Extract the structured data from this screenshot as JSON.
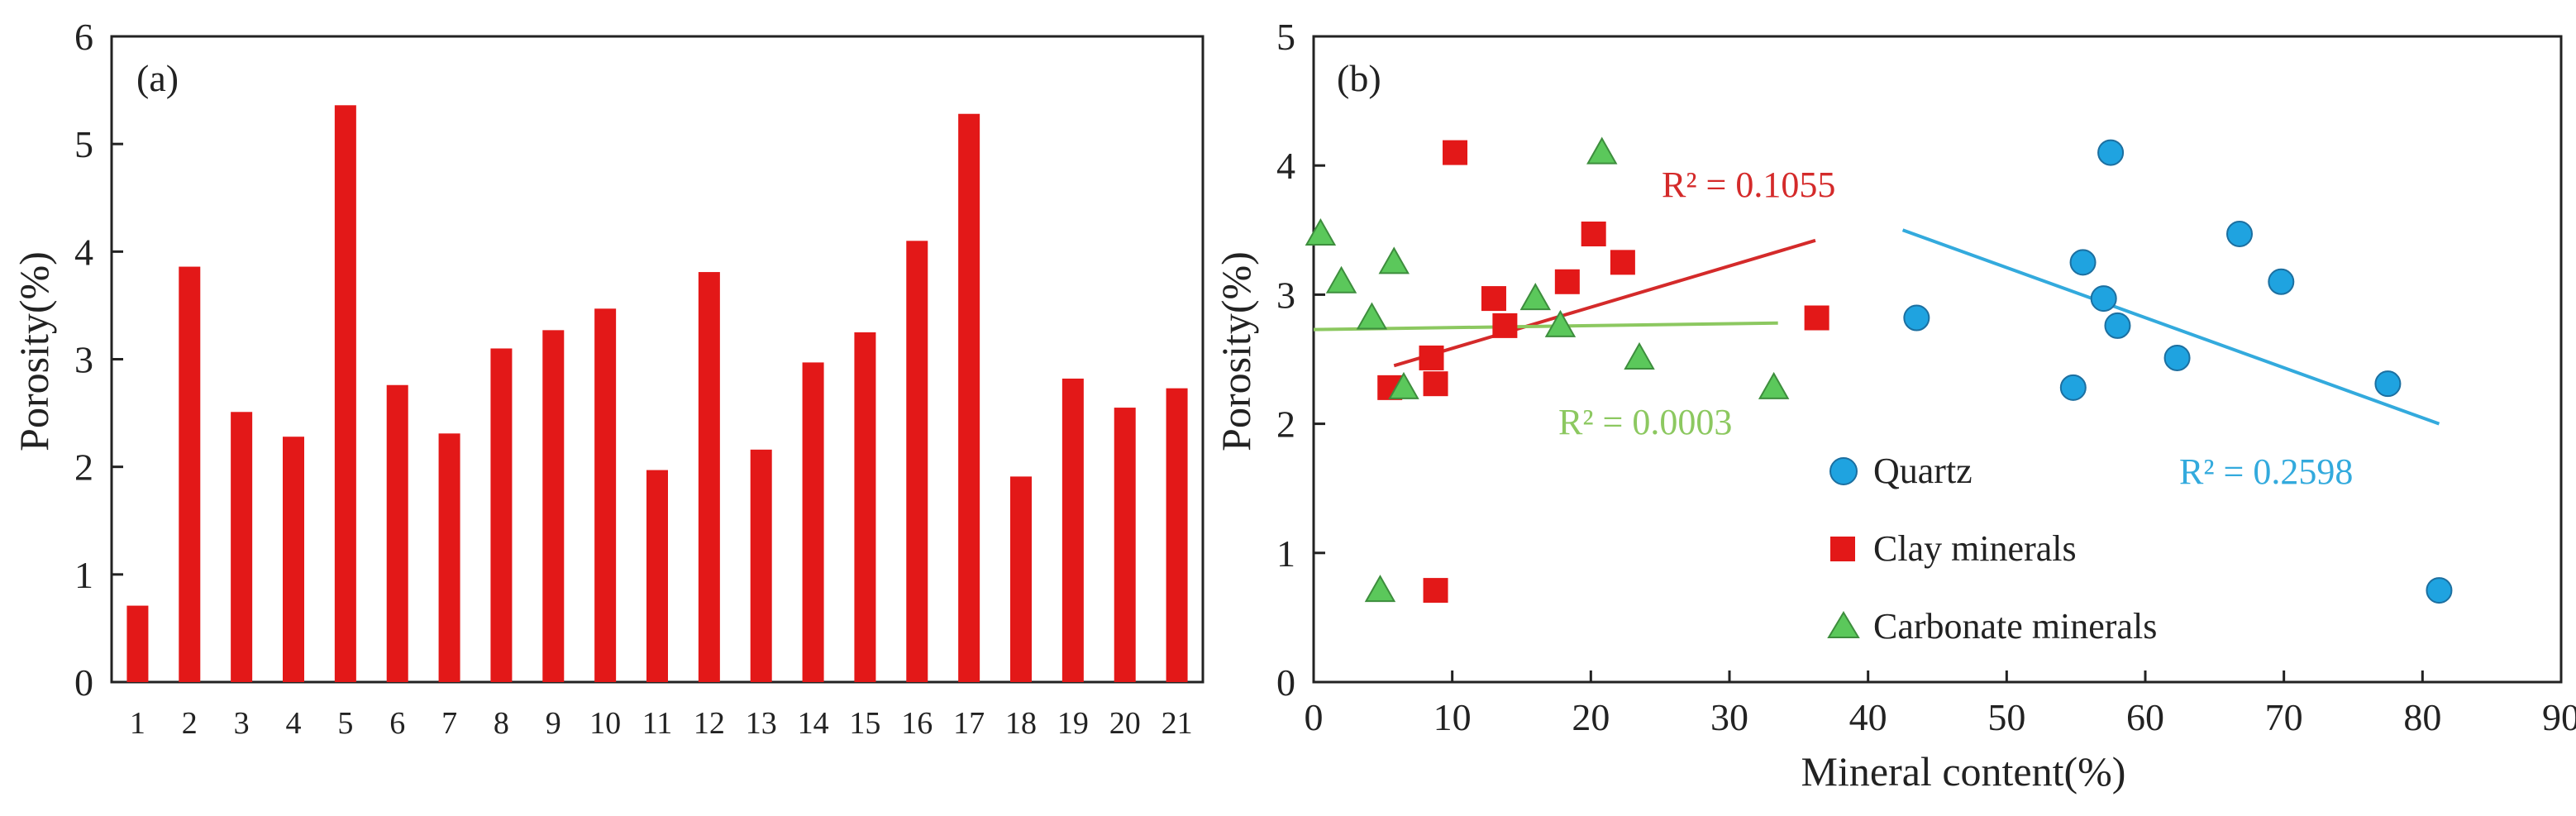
{
  "chart_data": [
    {
      "type": "bar",
      "panel_label": "(a)",
      "ylabel": "Porosity(%)",
      "xlabel": "",
      "ylim": [
        0,
        6
      ],
      "yticks": [
        0,
        1,
        2,
        3,
        4,
        5,
        6
      ],
      "bar_color": "#e31818",
      "categories": [
        "1",
        "2",
        "3",
        "4",
        "5",
        "6",
        "7",
        "8",
        "9",
        "10",
        "11",
        "12",
        "13",
        "14",
        "15",
        "16",
        "17",
        "18",
        "19",
        "20",
        "21"
      ],
      "values": [
        0.71,
        3.86,
        2.51,
        2.28,
        5.36,
        2.76,
        2.31,
        3.1,
        3.27,
        3.47,
        1.97,
        3.81,
        2.16,
        2.97,
        3.25,
        4.1,
        5.28,
        1.91,
        2.82,
        2.55,
        2.73
      ]
    },
    {
      "type": "scatter",
      "panel_label": "(b)",
      "xlabel": "Mineral content(%)",
      "ylabel": "Porosity(%)",
      "xlim": [
        0,
        90
      ],
      "ylim": [
        0,
        5
      ],
      "xticks": [
        0,
        10,
        20,
        30,
        40,
        50,
        60,
        70,
        80,
        90
      ],
      "yticks": [
        0,
        1,
        2,
        3,
        4,
        5
      ],
      "legend_position": "lower-center",
      "series": [
        {
          "name": "Quartz",
          "marker": "circle",
          "color": "#1fa3e0",
          "points": [
            [
              43.5,
              2.82
            ],
            [
              54.8,
              2.28
            ],
            [
              55.5,
              3.25
            ],
            [
              57,
              2.97
            ],
            [
              57.5,
              4.1
            ],
            [
              58,
              2.76
            ],
            [
              62.3,
              2.51
            ],
            [
              66.8,
              3.47
            ],
            [
              69.8,
              3.1
            ],
            [
              77.5,
              2.31
            ],
            [
              81.2,
              0.71
            ]
          ],
          "trendline": {
            "x": [
              42.5,
              81.2
            ],
            "y": [
              3.5,
              2.0
            ],
            "r2_label": "R² = 0.2598",
            "color": "#33aadd"
          }
        },
        {
          "name": "Clay minerals",
          "marker": "square",
          "color": "#e31818",
          "points": [
            [
              5.5,
              2.28
            ],
            [
              8.5,
              2.51
            ],
            [
              8.8,
              2.31
            ],
            [
              8.8,
              0.71
            ],
            [
              10.2,
              4.1
            ],
            [
              13,
              2.97
            ],
            [
              13.8,
              2.76
            ],
            [
              18.3,
              3.1
            ],
            [
              20.2,
              3.47
            ],
            [
              22.3,
              3.25
            ],
            [
              36.3,
              2.82
            ]
          ],
          "trendline": {
            "x": [
              5.8,
              36.2
            ],
            "y": [
              2.45,
              3.42
            ],
            "r2_label": "R² = 0.1055",
            "color": "#d42a2a"
          }
        },
        {
          "name": "Carbonate minerals",
          "marker": "triangle",
          "color": "#5bc85b",
          "points": [
            [
              0.5,
              3.47
            ],
            [
              2,
              3.1
            ],
            [
              4.2,
              2.82
            ],
            [
              4.8,
              0.71
            ],
            [
              5.8,
              3.25
            ],
            [
              6.5,
              2.28
            ],
            [
              16,
              2.97
            ],
            [
              17.8,
              2.76
            ],
            [
              20.8,
              4.1
            ],
            [
              23.5,
              2.51
            ],
            [
              33.2,
              2.28
            ]
          ],
          "trendline": {
            "x": [
              0,
              33.5
            ],
            "y": [
              2.73,
              2.78
            ],
            "r2_label": "R² = 0.0003",
            "color": "#8cc860"
          }
        }
      ]
    }
  ]
}
